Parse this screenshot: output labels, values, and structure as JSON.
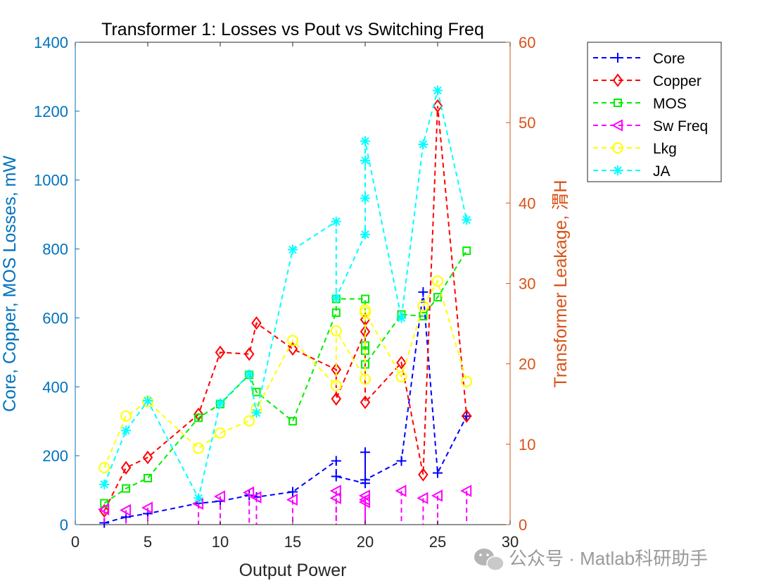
{
  "chart_data": {
    "type": "line",
    "title": "Transformer 1: Losses vs Pout vs Switching Freq",
    "xlabel": "Output Power",
    "ylabel_left": "Core, Copper, MOS Losses, mW",
    "ylabel_right": "Transformer Leakage, 渭H",
    "xlim": [
      0,
      30
    ],
    "ylim_left": [
      0,
      1400
    ],
    "ylim_right": [
      0,
      60
    ],
    "x_ticks": [
      "0",
      "5",
      "10",
      "15",
      "20",
      "25",
      "30"
    ],
    "y_left_ticks": [
      "0",
      "200",
      "400",
      "600",
      "800",
      "1000",
      "1200",
      "1400"
    ],
    "y_right_ticks": [
      "0",
      "10",
      "20",
      "30",
      "40",
      "50",
      "60"
    ],
    "grid": false,
    "legend_position": "outside-top-right",
    "series": [
      {
        "name": "Core",
        "axis": "left",
        "color": "#0000ff",
        "marker": "plus",
        "stems": false,
        "x": [
          2,
          3.5,
          5,
          8.5,
          10,
          12,
          12.5,
          15,
          18,
          18,
          20,
          20,
          20,
          22.5,
          24,
          25,
          27
        ],
        "y": [
          5,
          22,
          32,
          62,
          68,
          85,
          80,
          95,
          185,
          140,
          120,
          210,
          130,
          185,
          675,
          150,
          315
        ]
      },
      {
        "name": "Copper",
        "axis": "left",
        "color": "#ff0000",
        "marker": "diamond",
        "stems": false,
        "x": [
          2,
          3.5,
          5,
          8.5,
          10,
          12,
          12.5,
          15,
          18,
          18,
          20,
          20,
          20,
          22.5,
          24,
          25,
          27
        ],
        "y": [
          40,
          165,
          195,
          320,
          500,
          495,
          585,
          510,
          450,
          365,
          560,
          595,
          355,
          470,
          145,
          1215,
          315
        ]
      },
      {
        "name": "MOS",
        "axis": "left",
        "color": "#00ee00",
        "marker": "square",
        "stems": false,
        "x": [
          2,
          3.5,
          5,
          8.5,
          10,
          12,
          12.5,
          15,
          18,
          18,
          20,
          20,
          20,
          20,
          22.5,
          24,
          25,
          27
        ],
        "y": [
          62,
          105,
          135,
          310,
          350,
          435,
          385,
          300,
          615,
          655,
          655,
          520,
          505,
          465,
          610,
          605,
          660,
          795
        ]
      },
      {
        "name": "Sw Freq",
        "axis": "right",
        "color": "#ff00ff",
        "marker": "triangle-left",
        "stems": true,
        "x": [
          2,
          3.5,
          5,
          8.5,
          10,
          12,
          12.5,
          15,
          18,
          18,
          20,
          20,
          20,
          22.5,
          24,
          25,
          27
        ],
        "y": [
          1.9,
          1.8,
          2.1,
          2.6,
          3.5,
          4.0,
          3.4,
          3.1,
          3.3,
          4.2,
          2.8,
          3.6,
          3.1,
          4.2,
          3.3,
          3.6,
          4.2
        ]
      },
      {
        "name": "Lkg",
        "axis": "right",
        "color": "#ffff00",
        "marker": "circle",
        "stems": false,
        "x": [
          2,
          3.5,
          5,
          8.5,
          10,
          12,
          12.5,
          15,
          18,
          18,
          20,
          20,
          20,
          22.5,
          24,
          25,
          27
        ],
        "y": [
          7.1,
          13.5,
          15.3,
          9.5,
          11.4,
          12.9,
          14.4,
          22.9,
          17.3,
          24.1,
          18.1,
          26.7,
          26.4,
          18.4,
          27.2,
          30.3,
          17.8
        ]
      },
      {
        "name": "JA",
        "axis": "right",
        "color": "#00ffff",
        "marker": "asterisk",
        "stems": false,
        "x": [
          2,
          3.5,
          5,
          8.5,
          10,
          12,
          12.5,
          15,
          18,
          18,
          20,
          20,
          20,
          20,
          22.5,
          24,
          25,
          27
        ],
        "y": [
          5.0,
          11.7,
          15.4,
          3.3,
          15.1,
          18.7,
          13.9,
          34.2,
          37.7,
          28.2,
          36.1,
          40.6,
          45.3,
          47.7,
          25.7,
          47.3,
          54.0,
          37.9
        ]
      }
    ]
  },
  "watermark": {
    "icon": "wechat-icon",
    "text": "公众号 · Matlab科研助手"
  }
}
